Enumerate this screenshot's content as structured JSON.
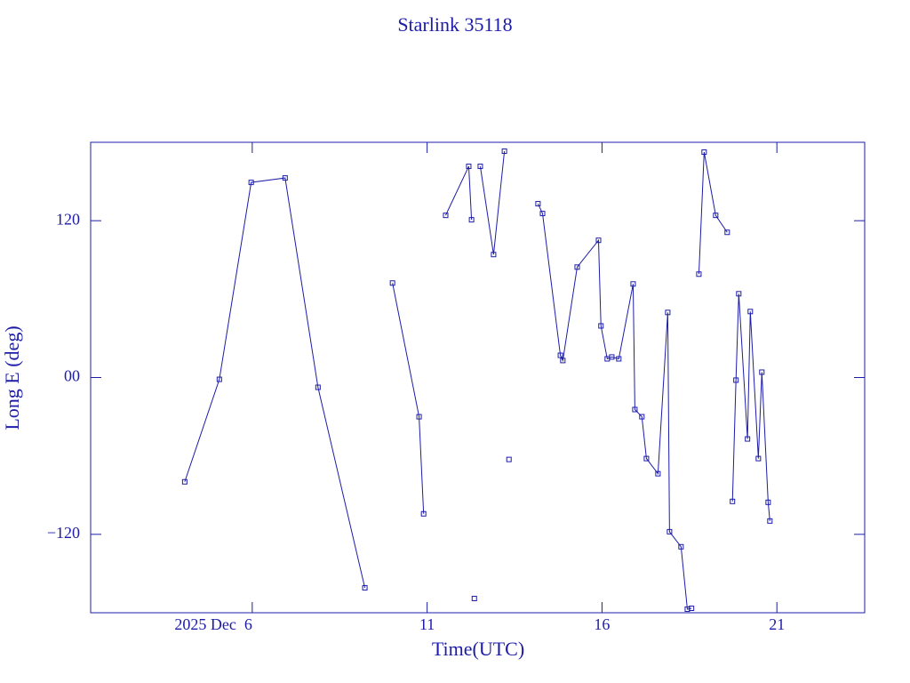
{
  "chart_data": {
    "type": "line",
    "title": "Starlink 35118",
    "x_label": "Time(UTC)",
    "y_label": "Long E (deg)",
    "color": "#1c1ca8",
    "xlim": [
      1.38,
      23.51
    ],
    "ylim": [
      -180,
      180
    ],
    "xticks": [
      {
        "value": 6,
        "label": "2025 Dec  6"
      },
      11,
      16,
      21
    ],
    "yticks": [
      120,
      {
        "value": 0,
        "label": "00"
      },
      {
        "value": -120,
        "label": "−120"
      }
    ],
    "series": [
      {
        "name": "Starlink 35118",
        "color": "#1c1ca8",
        "x": [
          4.07,
          5.06,
          5.97,
          6.94,
          7.88,
          9.22,
          null,
          10.01,
          10.77,
          10.9,
          null,
          11.53,
          12.19,
          12.27,
          null,
          12.35,
          null,
          12.52,
          12.9,
          13.21,
          null,
          13.34,
          null,
          14.17,
          14.3,
          14.81,
          14.88,
          15.29,
          15.9,
          15.97,
          16.15,
          16.28,
          16.48,
          16.89,
          16.94,
          17.14,
          17.27,
          17.6,
          17.88,
          17.93,
          18.26,
          18.44,
          18.56,
          null,
          18.77,
          18.92,
          19.25,
          19.58,
          null,
          19.73,
          19.83,
          19.91,
          20.16,
          20.24,
          20.47,
          20.57,
          20.75,
          20.8
        ],
        "values": [
          -79.8,
          -1.4,
          149.3,
          152.7,
          -7.5,
          -160.9,
          null,
          72.3,
          -30.0,
          -104.3,
          null,
          124.1,
          161.6,
          120.7,
          null,
          -169.1,
          null,
          161.6,
          94.1,
          173.2,
          null,
          -62.7,
          null,
          133.0,
          125.5,
          17.0,
          13.0,
          84.5,
          105.0,
          39.5,
          14.3,
          15.7,
          14.3,
          71.6,
          -24.5,
          -30.0,
          -62.0,
          -73.6,
          49.8,
          -118.0,
          -129.5,
          -177.3,
          -176.6,
          null,
          79.1,
          172.5,
          124.1,
          111.1,
          null,
          -94.8,
          -2.0,
          64.1,
          -47.0,
          50.5,
          -62.0,
          4.1,
          -95.5,
          -109.8
        ]
      }
    ]
  }
}
